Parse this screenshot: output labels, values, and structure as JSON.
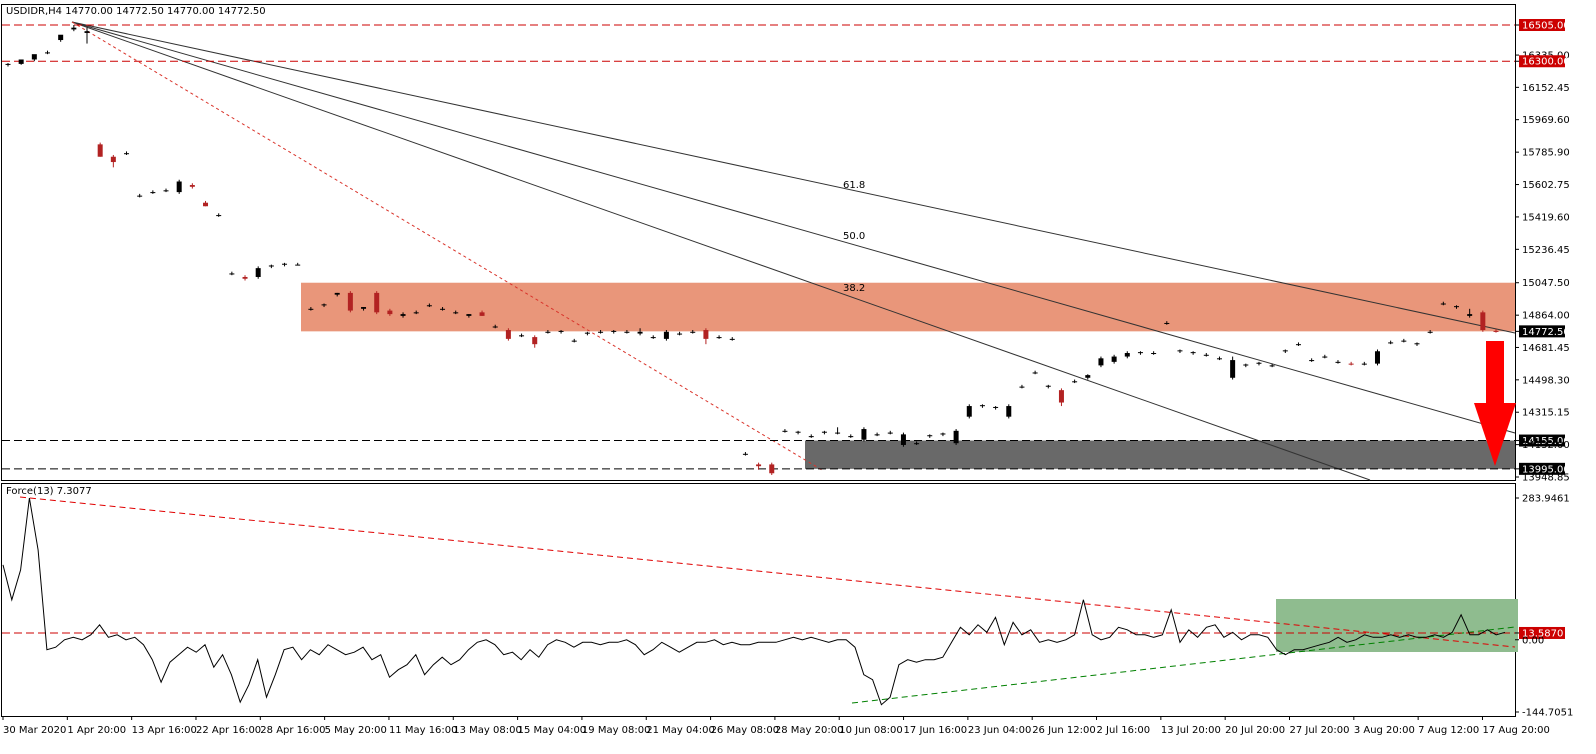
{
  "chart_data": [
    {
      "type": "candlestick",
      "title": "USDIDR,H4  14770.00 14772.50 14770.00 14772.50",
      "symbol": "USDIDR",
      "timeframe": "H4",
      "ylim": [
        13948.85,
        16505.0
      ],
      "grid": false,
      "y_ticks": [
        "16505.00",
        "16335.00",
        "16300.00",
        "16152.45",
        "15969.60",
        "15785.90",
        "15602.75",
        "15419.60",
        "15236.45",
        "15047.50",
        "14864.00",
        "14772.50",
        "14681.45",
        "14498.30",
        "14315.15",
        "14155.00",
        "14132.00",
        "13995.00",
        "13948.85"
      ],
      "highlighted_levels": [
        {
          "label": "16505.00",
          "value": 16505.0,
          "color": "#cc0000"
        },
        {
          "label": "16300.00",
          "value": 16300.0,
          "color": "#cc0000"
        },
        {
          "label": "14772.50",
          "value": 14772.5,
          "color": "#000000"
        },
        {
          "label": "14155.00",
          "value": 14155.0,
          "color": "#000000"
        },
        {
          "label": "13995.00",
          "value": 13995.0,
          "color": "#000000"
        }
      ],
      "candles": [
        {
          "o": 16280,
          "h": 16290,
          "l": 16270,
          "c": 16285
        },
        {
          "o": 16285,
          "h": 16300,
          "l": 16280,
          "c": 16310
        },
        {
          "o": 16310,
          "h": 16330,
          "l": 16300,
          "c": 16340
        },
        {
          "o": 16350,
          "h": 16360,
          "l": 16340,
          "c": 16350
        },
        {
          "o": 16420,
          "h": 16440,
          "l": 16410,
          "c": 16450
        },
        {
          "o": 16480,
          "h": 16505,
          "l": 16470,
          "c": 16490
        },
        {
          "o": 16460,
          "h": 16490,
          "l": 16400,
          "c": 16470
        },
        {
          "o": 15830,
          "h": 15840,
          "l": 15760,
          "c": 15760
        },
        {
          "o": 15760,
          "h": 15770,
          "l": 15700,
          "c": 15730
        },
        {
          "o": 15780,
          "h": 15790,
          "l": 15770,
          "c": 15780
        },
        {
          "o": 15540,
          "h": 15550,
          "l": 15530,
          "c": 15540
        },
        {
          "o": 15560,
          "h": 15570,
          "l": 15550,
          "c": 15560
        },
        {
          "o": 15570,
          "h": 15580,
          "l": 15560,
          "c": 15570
        },
        {
          "o": 15560,
          "h": 15630,
          "l": 15550,
          "c": 15620
        },
        {
          "o": 15600,
          "h": 15610,
          "l": 15580,
          "c": 15590
        },
        {
          "o": 15500,
          "h": 15510,
          "l": 15480,
          "c": 15480
        },
        {
          "o": 15430,
          "h": 15440,
          "l": 15420,
          "c": 15430
        },
        {
          "o": 15100,
          "h": 15110,
          "l": 15090,
          "c": 15100
        },
        {
          "o": 15080,
          "h": 15090,
          "l": 15060,
          "c": 15070
        },
        {
          "o": 15080,
          "h": 15140,
          "l": 15070,
          "c": 15130
        },
        {
          "o": 15140,
          "h": 15150,
          "l": 15130,
          "c": 15145
        },
        {
          "o": 15150,
          "h": 15160,
          "l": 15140,
          "c": 15155
        },
        {
          "o": 15150,
          "h": 15160,
          "l": 15145,
          "c": 15150
        },
        {
          "o": 14900,
          "h": 14910,
          "l": 14890,
          "c": 14900
        },
        {
          "o": 14920,
          "h": 14930,
          "l": 14910,
          "c": 14925
        },
        {
          "o": 14980,
          "h": 14990,
          "l": 14970,
          "c": 14990
        },
        {
          "o": 14990,
          "h": 15000,
          "l": 14880,
          "c": 14890
        },
        {
          "o": 14900,
          "h": 14910,
          "l": 14890,
          "c": 14910
        },
        {
          "o": 14990,
          "h": 15000,
          "l": 14870,
          "c": 14880
        },
        {
          "o": 14890,
          "h": 14900,
          "l": 14860,
          "c": 14870
        },
        {
          "o": 14860,
          "h": 14880,
          "l": 14850,
          "c": 14870
        },
        {
          "o": 14880,
          "h": 14890,
          "l": 14870,
          "c": 14880
        },
        {
          "o": 14920,
          "h": 14930,
          "l": 14910,
          "c": 14920
        },
        {
          "o": 14900,
          "h": 14910,
          "l": 14890,
          "c": 14900
        },
        {
          "o": 14880,
          "h": 14890,
          "l": 14870,
          "c": 14880
        },
        {
          "o": 14860,
          "h": 14870,
          "l": 14850,
          "c": 14870
        },
        {
          "o": 14880,
          "h": 14890,
          "l": 14860,
          "c": 14860
        },
        {
          "o": 14800,
          "h": 14810,
          "l": 14790,
          "c": 14800
        },
        {
          "o": 14780,
          "h": 14790,
          "l": 14720,
          "c": 14730
        },
        {
          "o": 14750,
          "h": 14760,
          "l": 14740,
          "c": 14750
        },
        {
          "o": 14740,
          "h": 14750,
          "l": 14680,
          "c": 14700
        },
        {
          "o": 14770,
          "h": 14780,
          "l": 14760,
          "c": 14770
        },
        {
          "o": 14770,
          "h": 14780,
          "l": 14760,
          "c": 14775
        },
        {
          "o": 14720,
          "h": 14730,
          "l": 14710,
          "c": 14720
        },
        {
          "o": 14760,
          "h": 14770,
          "l": 14750,
          "c": 14765
        },
        {
          "o": 14770,
          "h": 14780,
          "l": 14760,
          "c": 14770
        },
        {
          "o": 14770,
          "h": 14780,
          "l": 14760,
          "c": 14775
        },
        {
          "o": 14770,
          "h": 14780,
          "l": 14760,
          "c": 14770
        },
        {
          "o": 14760,
          "h": 14790,
          "l": 14750,
          "c": 14770
        },
        {
          "o": 14740,
          "h": 14750,
          "l": 14730,
          "c": 14740
        },
        {
          "o": 14730,
          "h": 14780,
          "l": 14720,
          "c": 14770
        },
        {
          "o": 14760,
          "h": 14770,
          "l": 14750,
          "c": 14760
        },
        {
          "o": 14770,
          "h": 14780,
          "l": 14760,
          "c": 14770
        },
        {
          "o": 14780,
          "h": 14790,
          "l": 14700,
          "c": 14730
        },
        {
          "o": 14740,
          "h": 14750,
          "l": 14730,
          "c": 14740
        },
        {
          "o": 14730,
          "h": 14740,
          "l": 14720,
          "c": 14730
        },
        {
          "o": 14080,
          "h": 14090,
          "l": 14070,
          "c": 14080
        },
        {
          "o": 14020,
          "h": 14030,
          "l": 13990,
          "c": 14010
        },
        {
          "o": 14020,
          "h": 14030,
          "l": 13960,
          "c": 13970
        },
        {
          "o": 14210,
          "h": 14220,
          "l": 14200,
          "c": 14210
        },
        {
          "o": 14200,
          "h": 14210,
          "l": 14190,
          "c": 14205
        },
        {
          "o": 14180,
          "h": 14190,
          "l": 14170,
          "c": 14180
        },
        {
          "o": 14200,
          "h": 14210,
          "l": 14190,
          "c": 14205
        },
        {
          "o": 14200,
          "h": 14230,
          "l": 14190,
          "c": 14200
        },
        {
          "o": 14180,
          "h": 14190,
          "l": 14170,
          "c": 14180
        },
        {
          "o": 14160,
          "h": 14230,
          "l": 14150,
          "c": 14220
        },
        {
          "o": 14190,
          "h": 14200,
          "l": 14180,
          "c": 14190
        },
        {
          "o": 14200,
          "h": 14210,
          "l": 14190,
          "c": 14200
        },
        {
          "o": 14130,
          "h": 14200,
          "l": 14120,
          "c": 14190
        },
        {
          "o": 14140,
          "h": 14150,
          "l": 14130,
          "c": 14140
        },
        {
          "o": 14180,
          "h": 14190,
          "l": 14170,
          "c": 14185
        },
        {
          "o": 14190,
          "h": 14200,
          "l": 14180,
          "c": 14195
        },
        {
          "o": 14140,
          "h": 14220,
          "l": 14130,
          "c": 14210
        },
        {
          "o": 14290,
          "h": 14360,
          "l": 14280,
          "c": 14350
        },
        {
          "o": 14350,
          "h": 14360,
          "l": 14340,
          "c": 14355
        },
        {
          "o": 14340,
          "h": 14350,
          "l": 14330,
          "c": 14345
        },
        {
          "o": 14290,
          "h": 14360,
          "l": 14280,
          "c": 14350
        },
        {
          "o": 14460,
          "h": 14470,
          "l": 14450,
          "c": 14460
        },
        {
          "o": 14540,
          "h": 14550,
          "l": 14530,
          "c": 14540
        },
        {
          "o": 14460,
          "h": 14470,
          "l": 14450,
          "c": 14465
        },
        {
          "o": 14440,
          "h": 14450,
          "l": 14350,
          "c": 14370
        },
        {
          "o": 14490,
          "h": 14500,
          "l": 14480,
          "c": 14490
        },
        {
          "o": 14510,
          "h": 14530,
          "l": 14500,
          "c": 14525
        },
        {
          "o": 14580,
          "h": 14630,
          "l": 14570,
          "c": 14620
        },
        {
          "o": 14600,
          "h": 14640,
          "l": 14590,
          "c": 14630
        },
        {
          "o": 14630,
          "h": 14660,
          "l": 14620,
          "c": 14650
        },
        {
          "o": 14650,
          "h": 14660,
          "l": 14640,
          "c": 14655
        },
        {
          "o": 14650,
          "h": 14660,
          "l": 14640,
          "c": 14650
        },
        {
          "o": 14820,
          "h": 14830,
          "l": 14810,
          "c": 14820
        },
        {
          "o": 14660,
          "h": 14670,
          "l": 14650,
          "c": 14665
        },
        {
          "o": 14650,
          "h": 14660,
          "l": 14640,
          "c": 14655
        },
        {
          "o": 14640,
          "h": 14650,
          "l": 14630,
          "c": 14640
        },
        {
          "o": 14620,
          "h": 14630,
          "l": 14610,
          "c": 14620
        },
        {
          "o": 14510,
          "h": 14630,
          "l": 14500,
          "c": 14610
        },
        {
          "o": 14580,
          "h": 14590,
          "l": 14570,
          "c": 14585
        },
        {
          "o": 14590,
          "h": 14600,
          "l": 14580,
          "c": 14595
        },
        {
          "o": 14580,
          "h": 14590,
          "l": 14570,
          "c": 14580
        },
        {
          "o": 14660,
          "h": 14670,
          "l": 14650,
          "c": 14665
        },
        {
          "o": 14700,
          "h": 14710,
          "l": 14690,
          "c": 14700
        },
        {
          "o": 14610,
          "h": 14620,
          "l": 14600,
          "c": 14610
        },
        {
          "o": 14630,
          "h": 14640,
          "l": 14620,
          "c": 14630
        },
        {
          "o": 14600,
          "h": 14610,
          "l": 14590,
          "c": 14600
        },
        {
          "o": 14590,
          "h": 14600,
          "l": 14580,
          "c": 14585
        },
        {
          "o": 14590,
          "h": 14600,
          "l": 14580,
          "c": 14590
        },
        {
          "o": 14590,
          "h": 14670,
          "l": 14580,
          "c": 14660
        },
        {
          "o": 14710,
          "h": 14720,
          "l": 14700,
          "c": 14710
        },
        {
          "o": 14720,
          "h": 14730,
          "l": 14710,
          "c": 14720
        },
        {
          "o": 14700,
          "h": 14710,
          "l": 14690,
          "c": 14705
        },
        {
          "o": 14770,
          "h": 14780,
          "l": 14760,
          "c": 14770
        },
        {
          "o": 14930,
          "h": 14940,
          "l": 14920,
          "c": 14930
        },
        {
          "o": 14910,
          "h": 14920,
          "l": 14900,
          "c": 14915
        },
        {
          "o": 14860,
          "h": 14900,
          "l": 14850,
          "c": 14870
        },
        {
          "o": 14880,
          "h": 14890,
          "l": 14770,
          "c": 14780
        },
        {
          "o": 14775,
          "h": 14785,
          "l": 14765,
          "c": 14772.5
        }
      ],
      "zones": [
        {
          "name": "resistance",
          "from": 14772.5,
          "to": 15047.5,
          "color": "#e9967a"
        },
        {
          "name": "support",
          "from": 13995.0,
          "to": 14155.0,
          "color": "#696969"
        }
      ],
      "fibonacci_fan": {
        "levels": [
          "61.8",
          "50.0",
          "38.2"
        ]
      },
      "annotations": [
        {
          "type": "arrow-down",
          "color": "#ff0000"
        }
      ]
    },
    {
      "type": "line",
      "title": "Force(13) 7.3077",
      "indicator": "Force",
      "period": 13,
      "value": 7.3077,
      "ylim": [
        -144.7051,
        283.9461
      ],
      "y_ticks": [
        "283.9461",
        "13.5870",
        "0.00",
        "-144.7051"
      ],
      "highlighted_levels": [
        {
          "label": "13.5870",
          "value": 13.587,
          "color": "#cc0000"
        }
      ],
      "values": [
        150,
        80,
        140,
        284,
        180,
        -20,
        -15,
        0,
        5,
        0,
        10,
        30,
        5,
        10,
        0,
        5,
        -10,
        -40,
        -85,
        -45,
        -30,
        -15,
        -25,
        -10,
        -55,
        -30,
        -70,
        -125,
        -90,
        -40,
        -115,
        -70,
        -20,
        -15,
        -40,
        -20,
        -30,
        -10,
        -20,
        -30,
        -25,
        -15,
        -40,
        -30,
        -75,
        -60,
        -50,
        -30,
        -70,
        -50,
        -35,
        -50,
        -40,
        -20,
        -5,
        0,
        -10,
        -30,
        -25,
        -40,
        -20,
        -35,
        -10,
        0,
        -5,
        -15,
        -5,
        -5,
        -10,
        -5,
        -5,
        0,
        -10,
        -30,
        -20,
        -5,
        -15,
        -25,
        -15,
        -5,
        -5,
        0,
        -10,
        -5,
        -10,
        -10,
        -5,
        -5,
        -5,
        0,
        5,
        0,
        5,
        0,
        -5,
        0,
        0,
        -15,
        -70,
        -80,
        -130,
        -115,
        -50,
        -40,
        -45,
        -40,
        -40,
        -35,
        -5,
        25,
        10,
        30,
        15,
        45,
        -10,
        35,
        10,
        20,
        -5,
        0,
        -5,
        0,
        10,
        80,
        10,
        0,
        5,
        25,
        20,
        10,
        10,
        5,
        10,
        60,
        -5,
        20,
        5,
        25,
        30,
        5,
        15,
        0,
        10,
        10,
        5,
        -20,
        -30,
        -20,
        -20,
        -15,
        -10,
        -5,
        5,
        -5,
        0,
        10,
        5,
        5,
        10,
        5,
        10,
        5,
        5,
        10,
        5,
        15,
        50,
        10,
        10,
        20,
        10,
        15
      ],
      "zones": [
        {
          "name": "neutral-band",
          "color": "#8fbc8f"
        }
      ]
    }
  ],
  "x_ticks": [
    "30 Mar 2020",
    "1 Apr 20:00",
    "13 Apr 16:00",
    "22 Apr 16:00",
    "28 Apr 16:00",
    "5 May 20:00",
    "11 May 16:00",
    "13 May 08:00",
    "15 May 04:00",
    "19 May 08:00",
    "21 May 04:00",
    "26 May 08:00",
    "28 May 20:00",
    "10 Jun 08:00",
    "17 Jun 16:00",
    "23 Jun 04:00",
    "26 Jun 12:00",
    "2 Jul 16:00",
    "13 Jul 20:00",
    "20 Jul 20:00",
    "27 Jul 20:00",
    "3 Aug 20:00",
    "7 Aug 12:00",
    "17 Aug 20:00"
  ],
  "colors": {
    "bull": "#000000",
    "bear": "#b22222",
    "resistance_zone": "#e9967a",
    "support_zone": "#696969",
    "level_line": "#cc0000",
    "force_line": "#000000",
    "green_band": "#8fbc8f",
    "arrow": "#ff0000"
  }
}
